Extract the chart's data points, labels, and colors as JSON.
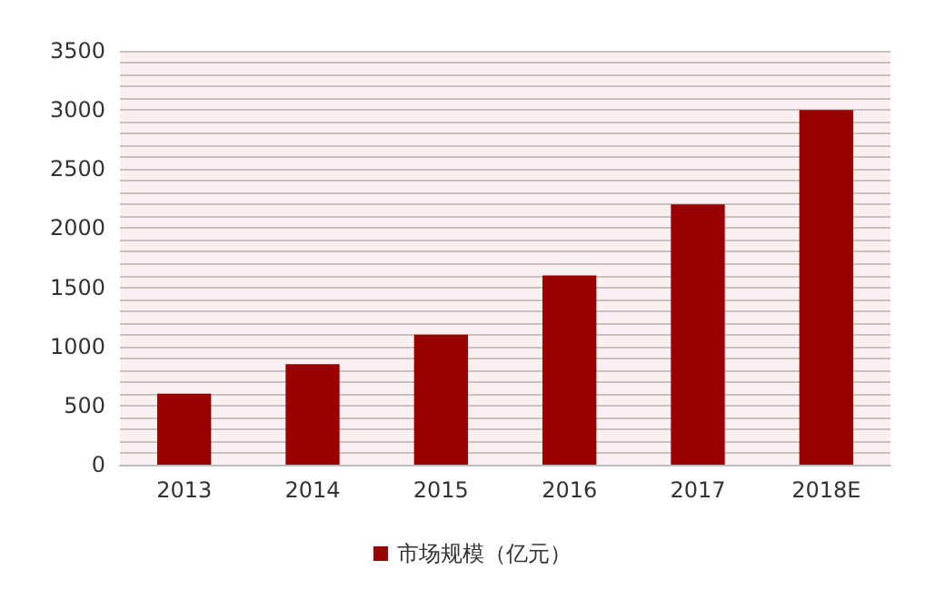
{
  "chart_data": {
    "type": "bar",
    "categories": [
      "2013",
      "2014",
      "2015",
      "2016",
      "2017",
      "2018E"
    ],
    "series": [
      {
        "name": "市场规模（亿元）",
        "color": "#990000",
        "values": [
          600,
          850,
          1100,
          1600,
          2200,
          3000
        ]
      }
    ],
    "ylim": [
      0,
      3500
    ],
    "yticks": [
      0,
      {
        "value": 100,
        "label": null
      },
      {
        "value": 200,
        "label": null
      },
      {
        "value": 300,
        "label": null
      },
      {
        "value": 400,
        "label": null
      },
      500,
      {
        "value": 600,
        "label": null
      },
      {
        "value": 700,
        "label": null
      },
      {
        "value": 800,
        "label": null
      },
      {
        "value": 900,
        "label": null
      },
      1000,
      {
        "value": 1100,
        "label": null
      },
      {
        "value": 1200,
        "label": null
      },
      {
        "value": 1300,
        "label": null
      },
      {
        "value": 1400,
        "label": null
      },
      1500,
      {
        "value": 1600,
        "label": null
      },
      {
        "value": 1700,
        "label": null
      },
      {
        "value": 1800,
        "label": null
      },
      {
        "value": 1900,
        "label": null
      },
      2000,
      {
        "value": 2100,
        "label": null
      },
      {
        "value": 2200,
        "label": null
      },
      {
        "value": 2300,
        "label": null
      },
      {
        "value": 2400,
        "label": null
      },
      2500,
      {
        "value": 2600,
        "label": null
      },
      {
        "value": 2700,
        "label": null
      },
      {
        "value": 2800,
        "label": null
      },
      {
        "value": 2900,
        "label": null
      },
      3000,
      {
        "value": 3100,
        "label": null
      },
      {
        "value": 3200,
        "label": null
      },
      {
        "value": 3300,
        "label": null
      },
      {
        "value": 3400,
        "label": null
      },
      3500
    ],
    "grid": "y",
    "legend": "bottom"
  }
}
